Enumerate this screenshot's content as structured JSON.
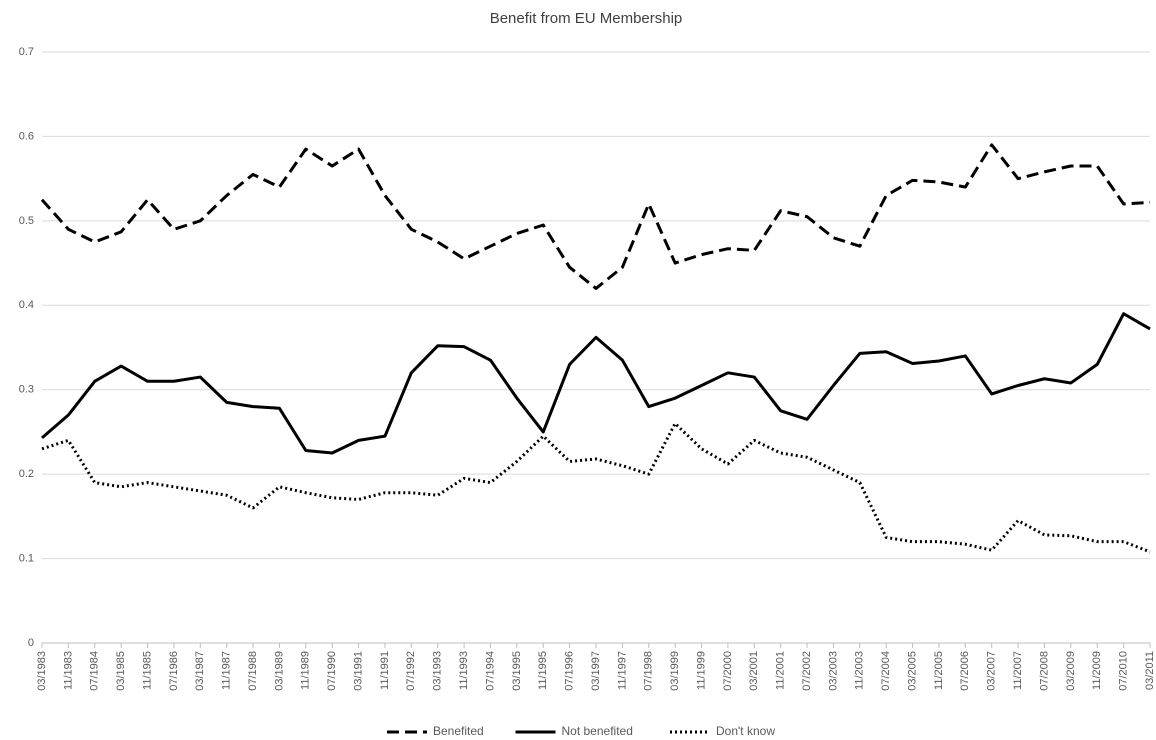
{
  "chart_data": {
    "type": "line",
    "title": "Benefit from EU Membership",
    "categories": [
      "03/1983",
      "11/1983",
      "07/1984",
      "03/1985",
      "11/1985",
      "07/1986",
      "03/1987",
      "11/1987",
      "07/1988",
      "03/1989",
      "11/1989",
      "07/1990",
      "03/1991",
      "11/1991",
      "07/1992",
      "03/1993",
      "11/1993",
      "07/1994",
      "03/1995",
      "11/1995",
      "07/1996",
      "03/1997",
      "11/1997",
      "07/1998",
      "03/1999",
      "11/1999",
      "07/2000",
      "03/2001",
      "11/2001",
      "07/2002",
      "03/2003",
      "11/2003",
      "07/2004",
      "03/2005",
      "11/2005",
      "07/2006",
      "03/2007",
      "11/2007",
      "07/2008",
      "03/2009",
      "11/2009",
      "07/2010",
      "03/2011"
    ],
    "series": [
      {
        "name": "Benefited",
        "color": "#000000",
        "dash": "dashed",
        "values": [
          0.525,
          0.49,
          0.475,
          0.487,
          0.525,
          0.49,
          0.5,
          0.53,
          0.555,
          0.54,
          0.585,
          0.565,
          0.585,
          0.53,
          0.49,
          0.475,
          0.455,
          0.47,
          0.485,
          0.495,
          0.445,
          0.42,
          0.445,
          0.52,
          0.45,
          0.46,
          0.467,
          0.465,
          0.512,
          0.505,
          0.48,
          0.47,
          0.53,
          0.548,
          0.546,
          0.54,
          0.59,
          0.55,
          0.558,
          0.565,
          0.565,
          0.52,
          0.522
        ]
      },
      {
        "name": "Not benefited",
        "color": "#000000",
        "dash": "solid",
        "values": [
          0.243,
          0.27,
          0.31,
          0.328,
          0.31,
          0.31,
          0.315,
          0.285,
          0.28,
          0.278,
          0.228,
          0.225,
          0.24,
          0.245,
          0.32,
          0.352,
          0.351,
          0.335,
          0.29,
          0.25,
          0.33,
          0.362,
          0.335,
          0.28,
          0.29,
          0.305,
          0.32,
          0.315,
          0.275,
          0.265,
          0.305,
          0.343,
          0.345,
          0.331,
          0.334,
          0.34,
          0.295,
          0.305,
          0.313,
          0.308,
          0.33,
          0.39,
          0.372
        ]
      },
      {
        "name": "Don't know",
        "color": "#000000",
        "dash": "dotted",
        "values": [
          0.23,
          0.24,
          0.19,
          0.185,
          0.19,
          0.185,
          0.18,
          0.175,
          0.16,
          0.185,
          0.178,
          0.172,
          0.17,
          0.178,
          0.178,
          0.175,
          0.195,
          0.19,
          0.215,
          0.245,
          0.215,
          0.218,
          0.21,
          0.2,
          0.26,
          0.23,
          0.212,
          0.24,
          0.225,
          0.22,
          0.205,
          0.19,
          0.125,
          0.12,
          0.12,
          0.117,
          0.11,
          0.145,
          0.128,
          0.127,
          0.12,
          0.12,
          0.108
        ]
      }
    ],
    "ylim": [
      0,
      0.7
    ],
    "yticks": [
      0,
      0.1,
      0.2,
      0.3,
      0.4,
      0.5,
      0.6,
      0.7
    ],
    "grid": true,
    "legend": "bottom"
  }
}
